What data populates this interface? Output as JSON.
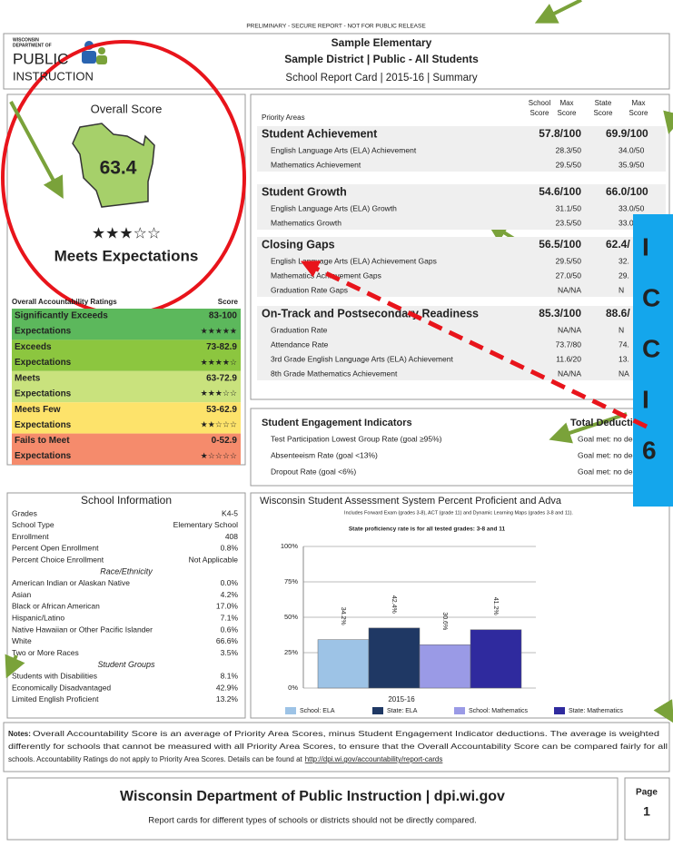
{
  "banner": "PRELIMINARY - SECURE REPORT - NOT FOR PUBLIC RELEASE",
  "header": {
    "logo": [
      "WISCONSIN",
      "DEPARTMENT OF",
      "PUBLIC",
      "INSTRUCTION"
    ],
    "school": "Sample Elementary",
    "district": "Sample District | Public - All Students",
    "report": "School Report Card | 2015-16 | Summary"
  },
  "overall": {
    "title": "Overall Score",
    "score": "63.4",
    "stars": "★★★☆☆",
    "rating": "Meets Expectations"
  },
  "ratings": {
    "header": "Overall Accountability Ratings",
    "score_header": "Score",
    "rows": [
      {
        "name": "Significantly Exceeds",
        "line2": "Expectations",
        "score": "83-100",
        "stars": "★★★★★",
        "color": "#5cb85c"
      },
      {
        "name": "Exceeds",
        "line2": "Expectations",
        "score": "73-82.9",
        "stars": "★★★★☆",
        "color": "#8cc63f"
      },
      {
        "name": "Meets",
        "line2": "Expectations",
        "score": "63-72.9",
        "stars": "★★★☆☆",
        "color": "#c9e27d"
      },
      {
        "name": "Meets Few",
        "line2": "Expectations",
        "score": "53-62.9",
        "stars": "★★☆☆☆",
        "color": "#fde36b"
      },
      {
        "name": "Fails to Meet",
        "line2": "Expectations",
        "score": "0-52.9",
        "stars": "★☆☆☆☆",
        "color": "#f58b6c"
      }
    ]
  },
  "priority": {
    "title": "Priority Areas",
    "columns": [
      [
        "School",
        "Score"
      ],
      [
        "Max",
        "Score"
      ],
      [
        "State",
        "Score"
      ],
      [
        "Max",
        "Score"
      ]
    ],
    "sections": [
      {
        "name": "Student Achievement",
        "school": "57.8/100",
        "state": "69.9/100",
        "items": [
          [
            "English Language Arts (ELA) Achievement",
            "28.3/50",
            "34.0/50"
          ],
          [
            "Mathematics Achievement",
            "29.5/50",
            "35.9/50"
          ]
        ]
      },
      {
        "name": "Student Growth",
        "school": "54.6/100",
        "state": "66.0/100",
        "items": [
          [
            "English Language Arts (ELA) Growth",
            "31.1/50",
            "33.0/50"
          ],
          [
            "Mathematics Growth",
            "23.5/50",
            "33.0"
          ]
        ]
      },
      {
        "name": "Closing Gaps",
        "school": "56.5/100",
        "state": "62.4/",
        "items": [
          [
            "English Language Arts (ELA) Achievement Gaps",
            "29.5/50",
            "32."
          ],
          [
            "Mathematics Achievement Gaps",
            "27.0/50",
            "29."
          ],
          [
            "Graduation Rate Gaps",
            "NA/NA",
            "N"
          ]
        ]
      },
      {
        "name": "On-Track and Postsecondary Readiness",
        "school": "85.3/100",
        "state": "88.6/",
        "items": [
          [
            "Graduation Rate",
            "NA/NA",
            "N"
          ],
          [
            "Attendance Rate",
            "73.7/80",
            "74."
          ],
          [
            "3rd Grade English Language Arts (ELA) Achievement",
            "11.6/20",
            "13."
          ],
          [
            "8th Grade Mathematics Achievement",
            "NA/NA",
            "NA"
          ]
        ]
      }
    ]
  },
  "engagement": {
    "title": "Student Engagement Indicators",
    "deductions": "Total Deduction",
    "rows": [
      [
        "Test Participation Lowest Group Rate (goal ≥95%)",
        "Goal met: no deduc"
      ],
      [
        "Absenteeism Rate (goal <13%)",
        "Goal met: no deduc"
      ],
      [
        "Dropout Rate (goal <6%)",
        "Goal met: no deduc"
      ]
    ]
  },
  "school_info": {
    "title": "School Information",
    "rows": [
      {
        "label": "Grades",
        "value": "K4-5"
      },
      {
        "label": "School Type",
        "value": "Elementary School"
      },
      {
        "label": "Enrollment",
        "value": "408"
      },
      {
        "label": "Percent Open Enrollment",
        "value": "0.8%"
      },
      {
        "label": "Percent Choice Enrollment",
        "value": "Not Applicable"
      },
      {
        "heading": "Race/Ethnicity"
      },
      {
        "label": "American Indian or Alaskan Native",
        "value": "0.0%"
      },
      {
        "label": "Asian",
        "value": "4.2%"
      },
      {
        "label": "Black or African American",
        "value": "17.0%"
      },
      {
        "label": "Hispanic/Latino",
        "value": "7.1%"
      },
      {
        "label": "Native Hawaiian or Other Pacific Islander",
        "value": "0.6%"
      },
      {
        "label": "White",
        "value": "66.6%"
      },
      {
        "label": "Two or More Races",
        "value": "3.5%"
      },
      {
        "heading": "Student Groups"
      },
      {
        "label": "Students with Disabilities",
        "value": "8.1%"
      },
      {
        "label": "Economically Disadvantaged",
        "value": "42.9%"
      },
      {
        "label": "Limited English Proficient",
        "value": "13.2%"
      }
    ]
  },
  "chart_data": {
    "type": "bar",
    "title": "Wisconsin Student Assessment System Percent Proficient and Adva",
    "subtitle": "Includes Forward Exam (grades 3-8), ACT (grade 11) and Dynamic Learning Maps (grades 3-8 and 11).",
    "note": "State proficiency rate is for all tested grades: 3-8 and 11",
    "categories": [
      "2015-16"
    ],
    "series": [
      {
        "name": "School: ELA",
        "color": "#9dc3e6",
        "values": [
          34.2
        ],
        "value_labels": [
          "34.2%"
        ]
      },
      {
        "name": "State: ELA",
        "color": "#1f3864",
        "values": [
          42.4
        ],
        "value_labels": [
          "42.4%"
        ]
      },
      {
        "name": "School: Mathematics",
        "color": "#9a9ae6",
        "values": [
          30.6
        ],
        "value_labels": [
          "30.6%"
        ]
      },
      {
        "name": "State: Mathematics",
        "color": "#2f2a9e",
        "values": [
          41.2
        ],
        "value_labels": [
          "41.2%"
        ]
      }
    ],
    "ylim": [
      0,
      100
    ],
    "yticks": [
      {
        "value": 0,
        "label": "0%"
      },
      {
        "value": 25,
        "label": "25%"
      },
      {
        "value": 50,
        "label": "50%"
      },
      {
        "value": 75,
        "label": "75%"
      },
      {
        "value": 100,
        "label": "100%"
      }
    ],
    "grid": true
  },
  "notes": {
    "label": "Notes:",
    "lines": [
      "Overall Accountability Score is an average of Priority Area Scores, minus Student Engagement Indicator deductions. The average is weighted",
      "differently for schools that cannot be measured with all Priority Area Scores, to ensure that the Overall Accountability Score can be compared fairly for all",
      "schools. Accountability Ratings do not apply to Priority Area Scores. Details can be found at"
    ],
    "link": "http://dpi.wi.gov/accountability/report-cards"
  },
  "footer": {
    "title": "Wisconsin Department of Public Instruction | dpi.wi.gov",
    "subtitle": "Report cards for different types of schools or districts should not be directly compared.",
    "page_label": "Page",
    "page": "1"
  },
  "overlay": {
    "letters": [
      "I",
      "C",
      "C",
      "I",
      "6"
    ]
  }
}
